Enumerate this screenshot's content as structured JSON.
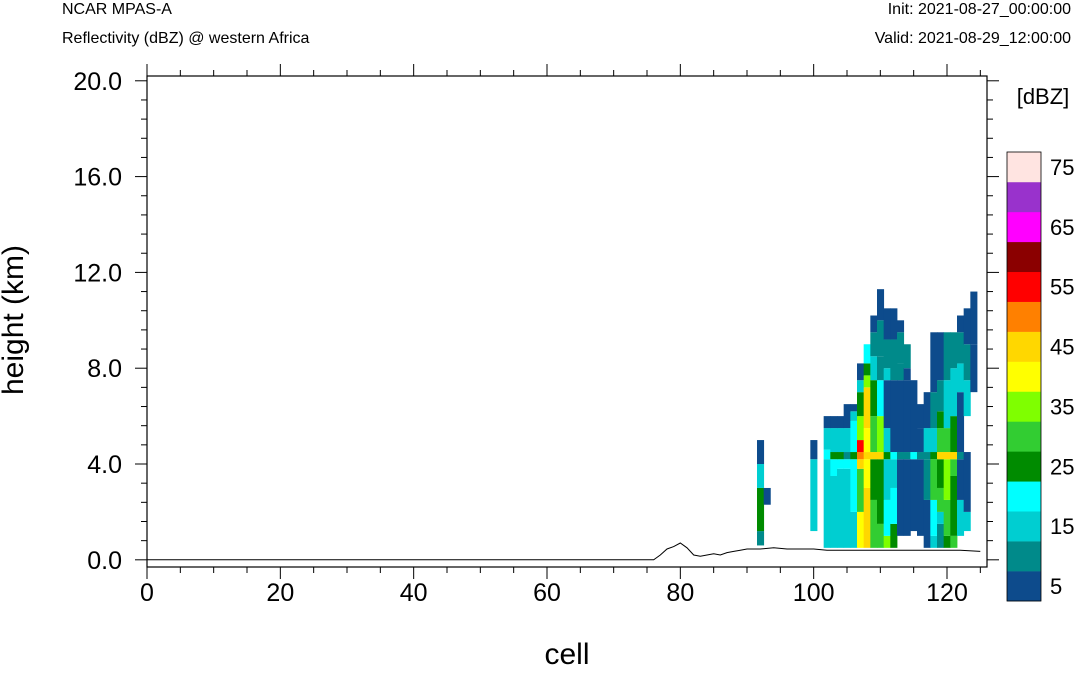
{
  "header": {
    "model": "NCAR MPAS-A",
    "field": "Reflectivity (dBZ) @ western Africa",
    "init": "Init: 2021-08-27_00:00:00",
    "valid": "Valid: 2021-08-29_12:00:00"
  },
  "chart_data": {
    "type": "heatmap",
    "title": "Reflectivity (dBZ) @ western Africa",
    "xlabel": "cell",
    "ylabel": "height (km)",
    "xlim": [
      0,
      126
    ],
    "ylim": [
      -0.3,
      20.2
    ],
    "x_ticks": [
      0,
      20,
      40,
      60,
      80,
      100,
      120
    ],
    "x_tick_labels": [
      "0",
      "20",
      "40",
      "60",
      "80",
      "100",
      "120"
    ],
    "y_ticks": [
      0,
      4,
      8,
      12,
      16,
      20
    ],
    "y_tick_labels": [
      "0.0",
      "4.0",
      "8.0",
      "12.0",
      "16.0",
      "20.0"
    ],
    "colorbar": {
      "unit_label": "[dBZ]",
      "levels": [
        5,
        10,
        15,
        20,
        25,
        30,
        35,
        40,
        45,
        50,
        55,
        60,
        65,
        70,
        75
      ],
      "tick_labels": [
        "5",
        "15",
        "25",
        "35",
        "45",
        "55",
        "65",
        "75"
      ],
      "colors": [
        "#0d4b8c",
        "#008a8a",
        "#00ced1",
        "#00ffff",
        "#008b00",
        "#32cd32",
        "#7fff00",
        "#ffff00",
        "#ffd700",
        "#ff8000",
        "#ff0000",
        "#8b0000",
        "#ff00ff",
        "#9932cc",
        "#ffe4e1"
      ]
    },
    "terrain": {
      "x": [
        0,
        76,
        77,
        78,
        79,
        80,
        81,
        82,
        83,
        84,
        85,
        86,
        87,
        88,
        89,
        90,
        92,
        94,
        96,
        98,
        100,
        102,
        106,
        110,
        114,
        118,
        122,
        125
      ],
      "height_km": [
        0,
        0,
        0.2,
        0.45,
        0.55,
        0.7,
        0.5,
        0.2,
        0.15,
        0.2,
        0.25,
        0.2,
        0.3,
        0.35,
        0.4,
        0.45,
        0.45,
        0.5,
        0.45,
        0.45,
        0.45,
        0.4,
        0.4,
        0.4,
        0.4,
        0.4,
        0.4,
        0.35
      ]
    },
    "columns": [
      {
        "x": 92,
        "segments": [
          [
            0.6,
            1.2,
            10
          ],
          [
            1.2,
            3.0,
            25
          ],
          [
            3.0,
            4.0,
            15
          ],
          [
            4.0,
            5.0,
            5
          ]
        ]
      },
      {
        "x": 93,
        "segments": [
          [
            2.3,
            3.0,
            5
          ]
        ]
      },
      {
        "x": 100,
        "segments": [
          [
            1.2,
            4.2,
            15
          ],
          [
            4.2,
            5.0,
            5
          ]
        ]
      },
      {
        "x": 102,
        "segments": [
          [
            0.5,
            4.2,
            15
          ],
          [
            4.2,
            4.6,
            20
          ],
          [
            4.6,
            5.5,
            15
          ],
          [
            5.5,
            6.0,
            5
          ]
        ]
      },
      {
        "x": 103,
        "segments": [
          [
            0.5,
            3.5,
            15
          ],
          [
            3.5,
            4.2,
            20
          ],
          [
            4.2,
            4.5,
            25
          ],
          [
            4.5,
            5.5,
            15
          ],
          [
            5.5,
            6.0,
            5
          ]
        ]
      },
      {
        "x": 104,
        "segments": [
          [
            0.5,
            3.8,
            15
          ],
          [
            3.8,
            4.2,
            20
          ],
          [
            4.2,
            4.5,
            25
          ],
          [
            4.5,
            5.5,
            15
          ],
          [
            5.5,
            6.0,
            5
          ]
        ]
      },
      {
        "x": 105,
        "segments": [
          [
            0.5,
            3.8,
            15
          ],
          [
            3.8,
            4.2,
            20
          ],
          [
            4.2,
            4.5,
            10
          ],
          [
            4.5,
            5.5,
            15
          ],
          [
            5.5,
            6.5,
            5
          ]
        ]
      },
      {
        "x": 106,
        "segments": [
          [
            0.5,
            2.0,
            15
          ],
          [
            2.0,
            4.2,
            20
          ],
          [
            4.2,
            4.5,
            25
          ],
          [
            4.5,
            5.8,
            20
          ],
          [
            5.8,
            6.2,
            15
          ],
          [
            6.2,
            6.5,
            5
          ]
        ]
      },
      {
        "x": 107,
        "segments": [
          [
            0.5,
            2.0,
            40
          ],
          [
            2.0,
            3.8,
            30
          ],
          [
            3.8,
            4.2,
            45
          ],
          [
            4.2,
            4.5,
            50
          ],
          [
            4.5,
            5.0,
            55
          ],
          [
            5.0,
            6.0,
            35
          ],
          [
            6.0,
            7.0,
            25
          ],
          [
            7.0,
            7.5,
            15
          ],
          [
            7.5,
            8.2,
            5
          ]
        ]
      },
      {
        "x": 108,
        "segments": [
          [
            0.5,
            3.0,
            45
          ],
          [
            3.0,
            4.2,
            40
          ],
          [
            4.2,
            4.5,
            45
          ],
          [
            4.5,
            5.5,
            40
          ],
          [
            5.5,
            7.2,
            45
          ],
          [
            7.2,
            7.7,
            35
          ],
          [
            7.7,
            8.2,
            25
          ],
          [
            8.2,
            9.0,
            20
          ]
        ]
      },
      {
        "x": 109,
        "segments": [
          [
            0.5,
            2.5,
            30
          ],
          [
            2.5,
            4.2,
            25
          ],
          [
            4.2,
            4.5,
            45
          ],
          [
            4.5,
            6.0,
            30
          ],
          [
            6.0,
            7.5,
            25
          ],
          [
            7.5,
            8.5,
            15
          ],
          [
            8.5,
            9.5,
            10
          ],
          [
            9.5,
            10.2,
            5
          ]
        ]
      },
      {
        "x": 110,
        "segments": [
          [
            0.5,
            1.5,
            30
          ],
          [
            1.5,
            4.2,
            25
          ],
          [
            4.2,
            4.5,
            45
          ],
          [
            4.5,
            6.0,
            35
          ],
          [
            6.0,
            7.5,
            20
          ],
          [
            7.5,
            8.5,
            10
          ],
          [
            8.5,
            10.0,
            10
          ],
          [
            10.0,
            11.3,
            5
          ]
        ]
      },
      {
        "x": 111,
        "segments": [
          [
            0.5,
            1.0,
            35
          ],
          [
            1.0,
            2.5,
            20
          ],
          [
            2.5,
            4.2,
            15
          ],
          [
            4.2,
            4.5,
            25
          ],
          [
            4.5,
            5.5,
            15
          ],
          [
            5.5,
            7.5,
            5
          ],
          [
            7.5,
            8.0,
            15
          ],
          [
            8.0,
            9.2,
            10
          ],
          [
            9.2,
            10.5,
            5
          ]
        ]
      },
      {
        "x": 112,
        "segments": [
          [
            0.5,
            1.5,
            25
          ],
          [
            1.5,
            3.0,
            20
          ],
          [
            3.0,
            4.2,
            15
          ],
          [
            4.2,
            4.5,
            20
          ],
          [
            4.5,
            7.5,
            5
          ],
          [
            7.5,
            9.2,
            10
          ],
          [
            9.2,
            10.5,
            5
          ]
        ]
      },
      {
        "x": 113,
        "segments": [
          [
            1.0,
            4.2,
            5
          ],
          [
            4.2,
            4.5,
            10
          ],
          [
            4.5,
            7.5,
            5
          ],
          [
            7.5,
            8.2,
            10
          ],
          [
            8.2,
            9.5,
            10
          ],
          [
            9.5,
            10.0,
            5
          ]
        ]
      },
      {
        "x": 114,
        "segments": [
          [
            1.0,
            4.2,
            5
          ],
          [
            4.2,
            4.5,
            10
          ],
          [
            4.5,
            7.5,
            5
          ],
          [
            7.5,
            8.0,
            5
          ],
          [
            8.0,
            9.0,
            10
          ]
        ]
      },
      {
        "x": 115,
        "segments": [
          [
            1.2,
            4.2,
            5
          ],
          [
            4.2,
            4.5,
            20
          ],
          [
            4.5,
            7.5,
            5
          ]
        ]
      },
      {
        "x": 116,
        "segments": [
          [
            1.0,
            4.2,
            5
          ],
          [
            4.2,
            4.5,
            10
          ],
          [
            4.5,
            5.5,
            5
          ],
          [
            5.5,
            6.5,
            5
          ]
        ]
      },
      {
        "x": 117,
        "segments": [
          [
            0.5,
            2.5,
            5
          ],
          [
            2.5,
            4.2,
            10
          ],
          [
            4.2,
            4.5,
            10
          ],
          [
            4.5,
            5.5,
            15
          ],
          [
            5.5,
            7.0,
            5
          ]
        ]
      },
      {
        "x": 118,
        "segments": [
          [
            0.5,
            1.0,
            15
          ],
          [
            1.0,
            2.5,
            20
          ],
          [
            2.5,
            4.2,
            30
          ],
          [
            4.2,
            4.5,
            25
          ],
          [
            4.5,
            5.5,
            15
          ],
          [
            5.5,
            7.0,
            10
          ],
          [
            7.0,
            9.5,
            5
          ]
        ]
      },
      {
        "x": 119,
        "segments": [
          [
            0.5,
            1.5,
            10
          ],
          [
            1.5,
            2.0,
            15
          ],
          [
            2.0,
            3.0,
            30
          ],
          [
            3.0,
            4.2,
            25
          ],
          [
            4.2,
            4.5,
            45
          ],
          [
            4.5,
            5.5,
            30
          ],
          [
            5.5,
            6.2,
            25
          ],
          [
            6.2,
            7.5,
            10
          ],
          [
            7.5,
            9.5,
            5
          ]
        ]
      },
      {
        "x": 120,
        "segments": [
          [
            0.5,
            1.0,
            25
          ],
          [
            1.0,
            2.5,
            30
          ],
          [
            2.5,
            4.2,
            35
          ],
          [
            4.2,
            4.5,
            45
          ],
          [
            4.5,
            5.5,
            30
          ],
          [
            5.5,
            7.5,
            15
          ],
          [
            7.5,
            9.5,
            10
          ]
        ]
      },
      {
        "x": 121,
        "segments": [
          [
            0.5,
            1.0,
            30
          ],
          [
            1.0,
            3.5,
            25
          ],
          [
            3.5,
            4.2,
            30
          ],
          [
            4.2,
            4.5,
            45
          ],
          [
            4.5,
            6.0,
            25
          ],
          [
            6.0,
            8.0,
            15
          ],
          [
            8.0,
            9.5,
            10
          ]
        ]
      },
      {
        "x": 122,
        "segments": [
          [
            1.0,
            2.5,
            15
          ],
          [
            2.5,
            4.2,
            5
          ],
          [
            4.2,
            4.5,
            10
          ],
          [
            4.5,
            7.0,
            5
          ],
          [
            7.0,
            8.2,
            15
          ],
          [
            8.2,
            9.5,
            10
          ],
          [
            9.5,
            10.2,
            5
          ]
        ]
      },
      {
        "x": 123,
        "segments": [
          [
            1.2,
            2.0,
            15
          ],
          [
            2.0,
            4.5,
            5
          ],
          [
            6.0,
            7.5,
            15
          ],
          [
            7.5,
            9.0,
            10
          ],
          [
            9.0,
            10.5,
            5
          ]
        ]
      },
      {
        "x": 124,
        "segments": [
          [
            7.0,
            9.0,
            5
          ],
          [
            9.0,
            11.2,
            5
          ]
        ]
      }
    ]
  }
}
